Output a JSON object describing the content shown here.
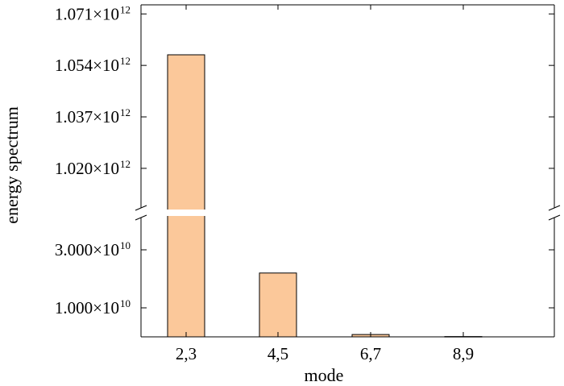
{
  "chart_data": {
    "type": "bar",
    "xlabel": "mode",
    "ylabel": "energy spectrum",
    "categories": [
      "2,3",
      "4,5",
      "6,7",
      "8,9"
    ],
    "values": [
      1057500000000.0,
      22000000000.0,
      800000000.0,
      100000000.0
    ],
    "broken_axis": true,
    "lower_ylim": [
      0,
      40000000000.0
    ],
    "upper_ylim": [
      1008000000000.0,
      1074000000000.0
    ],
    "lower_ticks": [
      {
        "value": 10000000000.0,
        "mantissa": "1.000",
        "exp": "10"
      },
      {
        "value": 30000000000.0,
        "mantissa": "3.000",
        "exp": "10"
      }
    ],
    "upper_ticks": [
      {
        "value": 1020000000000.0,
        "mantissa": "1.020",
        "exp": "12"
      },
      {
        "value": 1037000000000.0,
        "mantissa": "1.037",
        "exp": "12"
      },
      {
        "value": 1054000000000.0,
        "mantissa": "1.054",
        "exp": "12"
      },
      {
        "value": 1071000000000.0,
        "mantissa": "1.071",
        "exp": "12"
      }
    ],
    "bar_color": "#fbc89a",
    "bar_edge": "#000000",
    "grid": false
  }
}
